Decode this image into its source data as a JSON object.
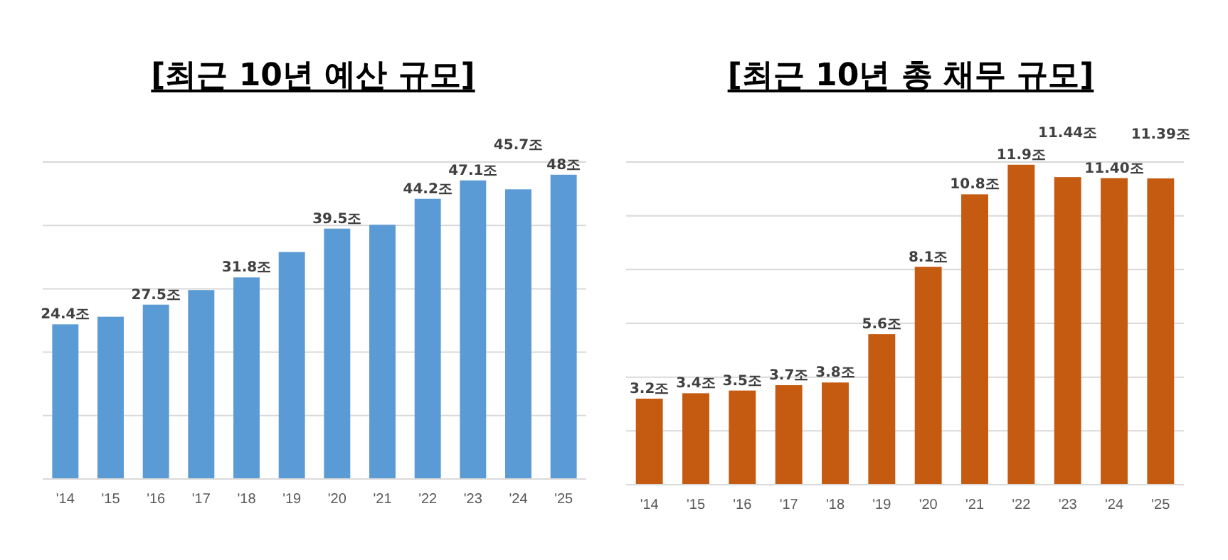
{
  "chart_data": [
    {
      "type": "bar",
      "title": "[최근 10년 예산 규모]",
      "categories": [
        "'14",
        "'15",
        "'16",
        "'17",
        "'18",
        "'19",
        "'20",
        "'21",
        "'22",
        "'23",
        "'24",
        "'25"
      ],
      "values": [
        24.4,
        25.6,
        27.5,
        29.8,
        31.8,
        35.8,
        39.5,
        40.1,
        44.2,
        47.1,
        45.7,
        48
      ],
      "value_labels": [
        "24.4조",
        null,
        "27.5조",
        null,
        "31.8조",
        null,
        "39.5조",
        null,
        "44.2조",
        "47.1조",
        "45.7조",
        "48조"
      ],
      "color": "#5b9bd5",
      "ylim": [
        0,
        50
      ],
      "yticks": [
        {
          "value": 0,
          "label": null
        },
        {
          "value": 10,
          "label": null
        },
        {
          "value": 20,
          "label": null
        },
        {
          "value": 30,
          "label": null
        },
        {
          "value": 40,
          "label": null
        },
        {
          "value": 50,
          "label": null
        }
      ],
      "grid": "y",
      "tick_labels": "x"
    },
    {
      "type": "bar",
      "title": "[최근 10년 총 채무 규모]",
      "categories": [
        "'14",
        "'15",
        "'16",
        "'17",
        "'18",
        "'19",
        "'20",
        "'21",
        "'22",
        "'23",
        "'24",
        "'25"
      ],
      "values": [
        3.2,
        3.4,
        3.5,
        3.7,
        3.8,
        5.6,
        8.1,
        10.8,
        11.9,
        11.44,
        11.4,
        11.39
      ],
      "value_labels": [
        "3.2조",
        "3.4조",
        "3.5조",
        "3.7조",
        "3.8조",
        "5.6조",
        "8.1조",
        "10.8조",
        "11.9조",
        "11.44조",
        "11.40조",
        "11.39조"
      ],
      "color": "#c55a11",
      "ylim": [
        0,
        12
      ],
      "yticks": [
        {
          "value": 0,
          "label": null
        },
        {
          "value": 2,
          "label": null
        },
        {
          "value": 4,
          "label": null
        },
        {
          "value": 6,
          "label": null
        },
        {
          "value": 8,
          "label": null
        },
        {
          "value": 10,
          "label": null
        },
        {
          "value": 12,
          "label": null
        }
      ],
      "grid": "y",
      "tick_labels": "x"
    }
  ]
}
